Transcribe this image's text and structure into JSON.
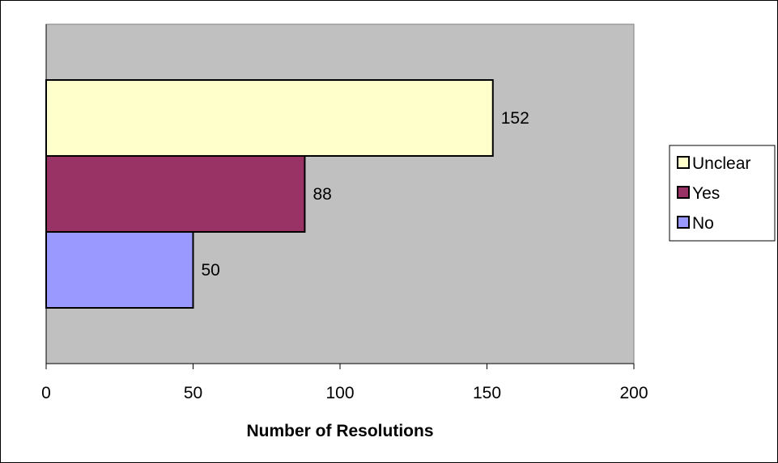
{
  "chart_data": {
    "type": "bar",
    "orientation": "horizontal",
    "stacked": false,
    "title": "",
    "xlabel": "Number of Resolutions",
    "ylabel": "",
    "xlim": [
      0,
      200
    ],
    "xticks": [
      0,
      50,
      100,
      150,
      200
    ],
    "tick_labels": [
      "0",
      "50",
      "100",
      "150",
      "200"
    ],
    "grid": false,
    "legend_position": "right",
    "plot_background": "#c0c0c0",
    "series": [
      {
        "name": "No",
        "value": 50,
        "value_label": "50",
        "color": "#9999ff"
      },
      {
        "name": "Yes",
        "value": 88,
        "value_label": "88",
        "color": "#993366"
      },
      {
        "name": "Unclear",
        "value": 152,
        "value_label": "152",
        "color": "#ffffcc"
      }
    ],
    "legend_order": [
      "Unclear",
      "Yes",
      "No"
    ]
  }
}
